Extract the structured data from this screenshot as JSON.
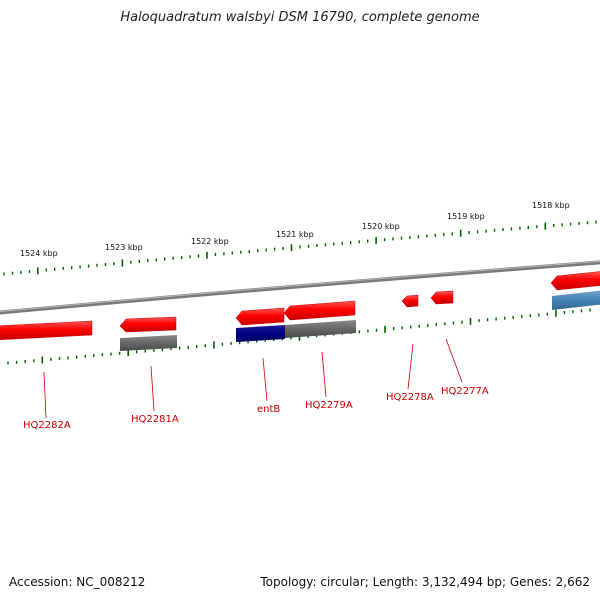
{
  "title": "Haloquadratum walsbyi DSM 16790, complete genome",
  "footer": {
    "accession": "Accession: NC_008212",
    "summary": "Topology: circular; Length: 3,132,494 bp; Genes: 2,662"
  },
  "scale": {
    "unit": "kbp",
    "labels": [
      "1524 kbp",
      "1523 kbp",
      "1522 kbp",
      "1521 kbp",
      "1520 kbp",
      "1519 kbp",
      "1518 kbp"
    ]
  },
  "genes": [
    {
      "name": "HQ2282A"
    },
    {
      "name": "HQ2281A"
    },
    {
      "name": "entB"
    },
    {
      "name": "HQ2279A"
    },
    {
      "name": "HQ2278A"
    },
    {
      "name": "HQ2277A"
    }
  ],
  "colors": {
    "gene_red": "#ff0000",
    "cog_gray": "#666666",
    "cog_navy": "#000080",
    "cog_blue": "#4682b4",
    "tick_green": "#006400",
    "backbone": "#888888",
    "label_red": "#cc0000"
  }
}
